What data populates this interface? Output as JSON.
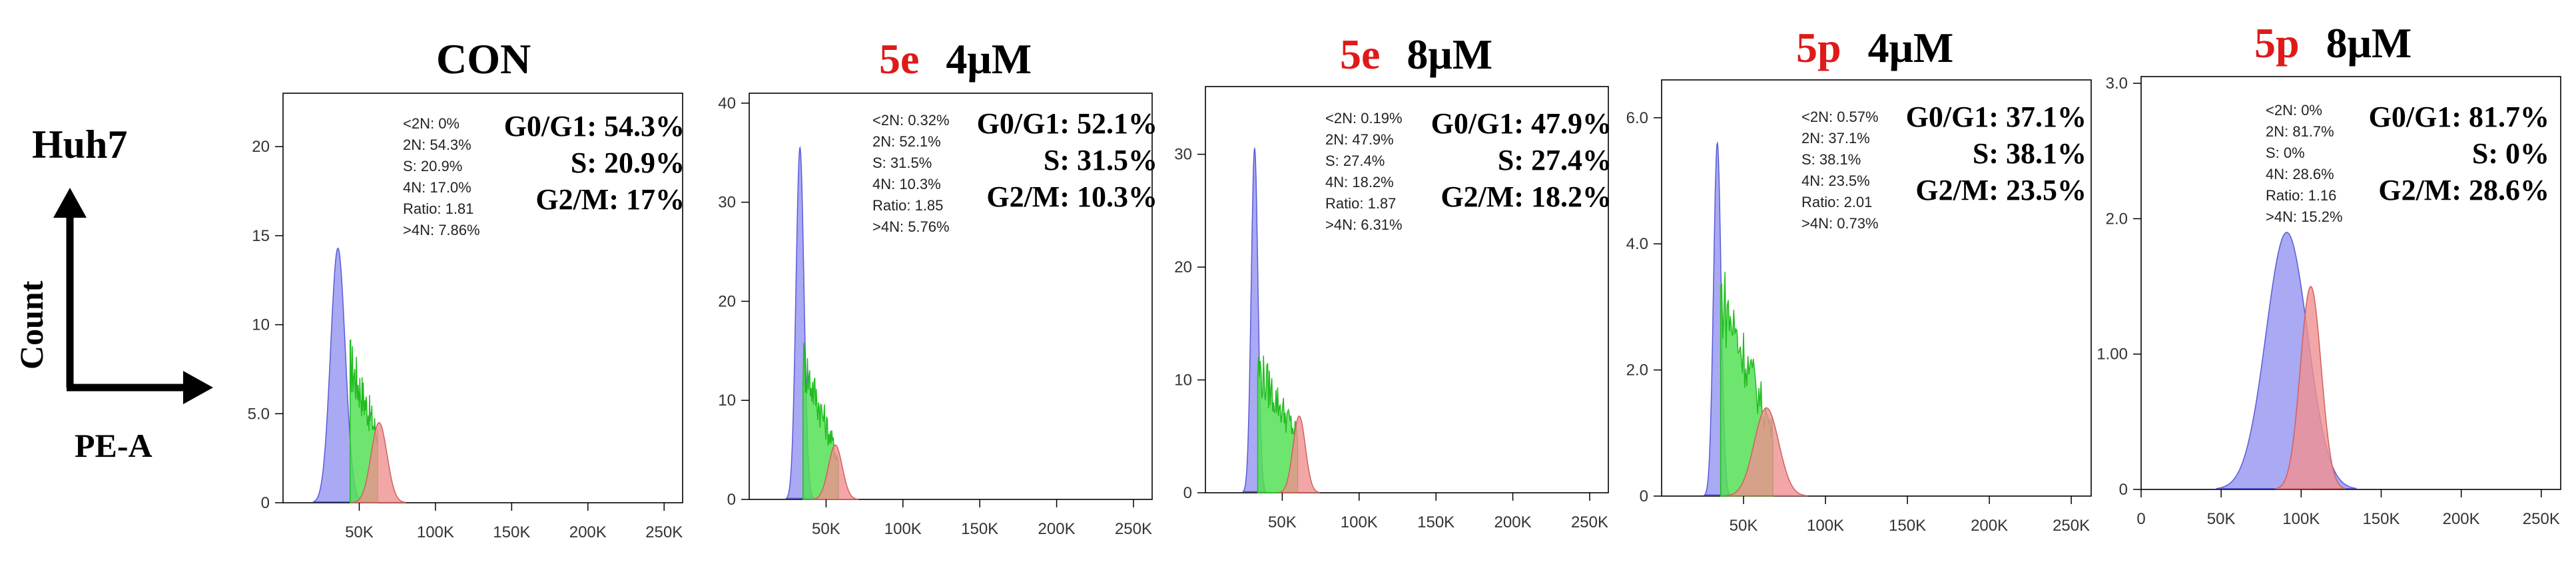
{
  "cell_line": "Huh7",
  "y_axis_label": "Count",
  "x_axis_label": "PE-A",
  "colors": {
    "g1": "#8c8cf0",
    "s": "#55e055",
    "g2": "#f09090",
    "compound": "#e01919"
  },
  "chart_data": [
    {
      "type": "histogram",
      "title": {
        "compound": "CON",
        "dose": ""
      },
      "xlim": [
        0,
        262144
      ],
      "ylim": [
        0,
        23
      ],
      "x_ticks": [
        {
          "v": 50000,
          "label": "50K"
        },
        {
          "v": 100000,
          "label": "100K"
        },
        {
          "v": 150000,
          "label": "150K"
        },
        {
          "v": 200000,
          "label": "200K"
        },
        {
          "v": 250000,
          "label": "250K"
        }
      ],
      "y_ticks": [
        {
          "v": 0,
          "label": "0"
        },
        {
          "v": 5,
          "label": "5.0"
        },
        {
          "v": 10,
          "label": "10"
        },
        {
          "v": 15,
          "label": "15"
        },
        {
          "v": 20,
          "label": "20"
        }
      ],
      "gate_stats": [
        "<2N: 0%",
        "2N: 54.3%",
        "S: 20.9%",
        "4N: 17.0%",
        "Ratio: 1.81",
        ">4N: 7.86%"
      ],
      "phase_stats": [
        "G0/G1: 54.3%",
        "S: 20.9%",
        "G2/M: 17%"
      ],
      "g1": {
        "center": 36000,
        "sigma": 4800,
        "height": 14.3
      },
      "s": {
        "start": 44000,
        "end": 62000,
        "start_level": 7.8,
        "end_level": 3.8
      },
      "g2": {
        "center": 63000,
        "sigma": 5200,
        "height": 4.5
      }
    },
    {
      "type": "histogram",
      "title": {
        "compound": "5e",
        "dose": "4μM"
      },
      "xlim": [
        0,
        262144
      ],
      "ylim": [
        0,
        41
      ],
      "x_ticks": [
        {
          "v": 50000,
          "label": "50K"
        },
        {
          "v": 100000,
          "label": "100K"
        },
        {
          "v": 150000,
          "label": "150K"
        },
        {
          "v": 200000,
          "label": "200K"
        },
        {
          "v": 250000,
          "label": "250K"
        }
      ],
      "y_ticks": [
        {
          "v": 0,
          "label": "0"
        },
        {
          "v": 10,
          "label": "10"
        },
        {
          "v": 20,
          "label": "20"
        },
        {
          "v": 30,
          "label": "30"
        },
        {
          "v": 40,
          "label": "40"
        }
      ],
      "gate_stats": [
        "<2N: 0.32%",
        "2N: 52.1%",
        "S: 31.5%",
        "4N: 10.3%",
        "Ratio: 1.85",
        ">4N: 5.76%"
      ],
      "phase_stats": [
        "G0/G1: 52.1%",
        "S: 31.5%",
        "G2/M: 10.3%"
      ],
      "g1": {
        "center": 33000,
        "sigma": 2600,
        "height": 35.5
      },
      "s": {
        "start": 35000,
        "end": 58000,
        "start_level": 14,
        "end_level": 4
      },
      "g2": {
        "center": 56000,
        "sigma": 4500,
        "height": 5.5
      }
    },
    {
      "type": "histogram",
      "title": {
        "compound": "5e",
        "dose": "8μM"
      },
      "xlim": [
        0,
        262144
      ],
      "ylim": [
        0,
        36
      ],
      "x_ticks": [
        {
          "v": 50000,
          "label": "50K"
        },
        {
          "v": 100000,
          "label": "100K"
        },
        {
          "v": 150000,
          "label": "150K"
        },
        {
          "v": 200000,
          "label": "200K"
        },
        {
          "v": 250000,
          "label": "250K"
        }
      ],
      "y_ticks": [
        {
          "v": 0,
          "label": "0"
        },
        {
          "v": 10,
          "label": "10"
        },
        {
          "v": 20,
          "label": "20"
        },
        {
          "v": 30,
          "label": "30"
        }
      ],
      "gate_stats": [
        "<2N: 0.19%",
        "2N: 47.9%",
        "S: 27.4%",
        "4N: 18.2%",
        "Ratio: 1.87",
        ">4N: 6.31%"
      ],
      "phase_stats": [
        "G0/G1: 47.9%",
        "S: 27.4%",
        "G2/M: 18.2%"
      ],
      "g1": {
        "center": 32000,
        "sigma": 2200,
        "height": 30.5
      },
      "s": {
        "start": 34000,
        "end": 60000,
        "start_level": 11,
        "end_level": 5
      },
      "g2": {
        "center": 61000,
        "sigma": 4000,
        "height": 6.8
      }
    },
    {
      "type": "histogram",
      "title": {
        "compound": "5p",
        "dose": "4μM"
      },
      "xlim": [
        0,
        262144
      ],
      "ylim": [
        0,
        6.6
      ],
      "x_ticks": [
        {
          "v": 50000,
          "label": "50K"
        },
        {
          "v": 100000,
          "label": "100K"
        },
        {
          "v": 150000,
          "label": "150K"
        },
        {
          "v": 200000,
          "label": "200K"
        },
        {
          "v": 250000,
          "label": "250K"
        }
      ],
      "y_ticks": [
        {
          "v": 0,
          "label": "0"
        },
        {
          "v": 2,
          "label": "2.0"
        },
        {
          "v": 4,
          "label": "4.0"
        },
        {
          "v": 6,
          "label": "6.0"
        }
      ],
      "gate_stats": [
        "<2N: 0.57%",
        "2N: 37.1%",
        "S: 38.1%",
        "4N: 23.5%",
        "Ratio: 2.01",
        ">4N: 0.73%"
      ],
      "phase_stats": [
        "G0/G1: 37.1%",
        "S: 38.1%",
        "G2/M: 23.5%"
      ],
      "g1": {
        "center": 34000,
        "sigma": 2300,
        "height": 5.6
      },
      "s": {
        "start": 36000,
        "end": 68000,
        "start_level": 3.2,
        "end_level": 1.0
      },
      "g2": {
        "center": 64000,
        "sigma": 7500,
        "height": 1.4
      }
    },
    {
      "type": "histogram",
      "title": {
        "compound": "5p",
        "dose": "8μM"
      },
      "xlim": [
        0,
        262144
      ],
      "ylim": [
        0,
        3.05
      ],
      "x_ticks": [
        {
          "v": 0,
          "label": "0"
        },
        {
          "v": 50000,
          "label": "50K"
        },
        {
          "v": 100000,
          "label": "100K"
        },
        {
          "v": 150000,
          "label": "150K"
        },
        {
          "v": 200000,
          "label": "200K"
        },
        {
          "v": 250000,
          "label": "250K"
        }
      ],
      "y_ticks": [
        {
          "v": 0,
          "label": "0"
        },
        {
          "v": 1,
          "label": "1.00"
        },
        {
          "v": 2,
          "label": "2.0"
        },
        {
          "v": 3,
          "label": "3.0"
        }
      ],
      "gate_stats": [
        "<2N: 0%",
        "2N: 81.7%",
        "S: 0%",
        "4N: 28.6%",
        "Ratio: 1.16",
        ">4N: 15.2%"
      ],
      "phase_stats": [
        "G0/G1: 81.7%",
        "S: 0%",
        "G2/M: 28.6%"
      ],
      "g1": {
        "center": 91000,
        "sigma": 13000,
        "height": 1.9
      },
      "s": null,
      "g2": {
        "center": 106000,
        "sigma": 6500,
        "height": 1.5
      }
    }
  ]
}
